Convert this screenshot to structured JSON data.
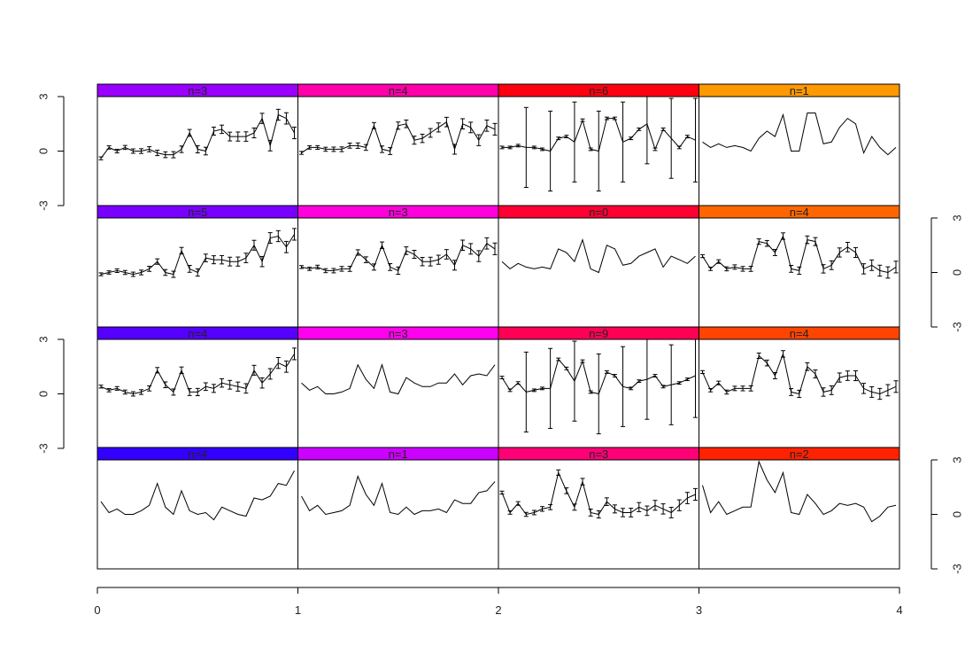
{
  "chart_data": {
    "type": "line",
    "layout": "4x4 small multiples (trellis)",
    "xlim": [
      0,
      4
    ],
    "ylim": [
      -3,
      3
    ],
    "x_ticks": [
      "0",
      "1",
      "2",
      "3",
      "4"
    ],
    "y_ticks": [
      "-3",
      "0",
      "3"
    ],
    "points_per_panel": 25,
    "panels": [
      {
        "row": 1,
        "col": 1,
        "label": "n=3",
        "strip_color": "#9900ff",
        "error_bars": "small",
        "y": [
          -0.4,
          0.2,
          0.0,
          0.2,
          0.0,
          0.0,
          0.1,
          -0.1,
          -0.2,
          -0.2,
          0.1,
          1.0,
          0.1,
          0.0,
          1.1,
          1.2,
          0.8,
          0.8,
          0.8,
          1.0,
          1.8,
          0.3,
          2.0,
          1.8,
          1.0
        ]
      },
      {
        "row": 1,
        "col": 2,
        "label": "n=4",
        "strip_color": "#ff00aa",
        "error_bars": "small",
        "y": [
          -0.1,
          0.2,
          0.2,
          0.1,
          0.1,
          0.1,
          0.3,
          0.3,
          0.2,
          1.4,
          0.1,
          0.0,
          1.4,
          1.5,
          0.6,
          0.7,
          1.0,
          1.3,
          1.6,
          0.1,
          1.5,
          1.3,
          0.6,
          1.4,
          1.2
        ]
      },
      {
        "row": 1,
        "col": 3,
        "label": "n=6",
        "strip_color": "#ff0011",
        "error_bars": "large",
        "y": [
          0.2,
          0.2,
          0.3,
          0.2,
          0.2,
          0.1,
          0.0,
          0.7,
          0.8,
          0.5,
          1.7,
          0.1,
          0.0,
          1.8,
          1.8,
          0.5,
          0.7,
          1.2,
          1.5,
          0.1,
          1.2,
          0.7,
          0.2,
          0.8,
          0.6
        ]
      },
      {
        "row": 1,
        "col": 4,
        "label": "n=1",
        "strip_color": "#ff9900",
        "error_bars": "none",
        "y": [
          0.5,
          0.2,
          0.4,
          0.2,
          0.3,
          0.2,
          0.0,
          0.7,
          1.1,
          0.8,
          2.0,
          0.0,
          0.0,
          2.1,
          2.1,
          0.4,
          0.5,
          1.3,
          1.8,
          1.5,
          -0.1,
          0.8,
          0.2,
          -0.2,
          0.2
        ]
      },
      {
        "row": 2,
        "col": 1,
        "label": "n=5",
        "strip_color": "#7700ff",
        "error_bars": "small",
        "y": [
          -0.1,
          0.0,
          0.1,
          0.0,
          -0.1,
          0.0,
          0.2,
          0.6,
          0.0,
          -0.1,
          1.2,
          0.2,
          0.0,
          0.8,
          0.7,
          0.7,
          0.6,
          0.6,
          0.8,
          1.5,
          0.6,
          1.9,
          2.0,
          1.4,
          2.1
        ]
      },
      {
        "row": 2,
        "col": 2,
        "label": "n=3",
        "strip_color": "#ff00dd",
        "error_bars": "small",
        "y": [
          0.3,
          0.2,
          0.3,
          0.1,
          0.1,
          0.2,
          0.2,
          1.1,
          0.7,
          0.3,
          1.5,
          0.3,
          0.1,
          1.2,
          1.0,
          0.6,
          0.6,
          0.7,
          1.0,
          0.4,
          1.5,
          1.3,
          0.9,
          1.6,
          1.3
        ]
      },
      {
        "row": 2,
        "col": 3,
        "label": "n=0",
        "strip_color": "#ff0033",
        "error_bars": "none",
        "y": [
          0.6,
          0.2,
          0.5,
          0.3,
          0.2,
          0.3,
          0.2,
          1.3,
          1.1,
          0.6,
          1.8,
          0.2,
          0.0,
          1.5,
          1.3,
          0.4,
          0.5,
          0.9,
          1.1,
          1.3,
          0.3,
          0.9,
          0.7,
          0.5,
          0.9
        ]
      },
      {
        "row": 2,
        "col": 4,
        "label": "n=4",
        "strip_color": "#ff6600",
        "error_bars": "small",
        "y": [
          0.9,
          0.2,
          0.6,
          0.2,
          0.3,
          0.2,
          0.2,
          1.7,
          1.6,
          1.1,
          2.0,
          0.2,
          0.1,
          1.8,
          1.7,
          0.2,
          0.4,
          1.1,
          1.4,
          1.1,
          0.2,
          0.4,
          0.1,
          0.0,
          0.3
        ]
      },
      {
        "row": 3,
        "col": 1,
        "label": "n=4",
        "strip_color": "#5500ff",
        "error_bars": "small",
        "y": [
          0.4,
          0.2,
          0.3,
          0.1,
          0.0,
          0.1,
          0.3,
          1.3,
          0.5,
          0.1,
          1.3,
          0.1,
          0.1,
          0.4,
          0.3,
          0.6,
          0.5,
          0.4,
          0.3,
          1.3,
          0.6,
          1.1,
          1.7,
          1.5,
          2.2
        ]
      },
      {
        "row": 3,
        "col": 2,
        "label": "n=3",
        "strip_color": "#ff00ee",
        "error_bars": "none",
        "y": [
          0.6,
          0.2,
          0.4,
          0.0,
          0.0,
          0.1,
          0.3,
          1.6,
          0.8,
          0.3,
          1.6,
          0.1,
          0.0,
          0.9,
          0.6,
          0.4,
          0.4,
          0.6,
          0.6,
          1.1,
          0.5,
          1.0,
          1.1,
          1.0,
          1.6
        ]
      },
      {
        "row": 3,
        "col": 3,
        "label": "n=9",
        "strip_color": "#ff0055",
        "error_bars": "large",
        "y": [
          0.9,
          0.2,
          0.6,
          0.1,
          0.2,
          0.3,
          0.3,
          1.9,
          1.4,
          0.7,
          1.8,
          0.1,
          0.0,
          1.2,
          1.0,
          0.4,
          0.3,
          0.7,
          0.8,
          1.0,
          0.4,
          0.5,
          0.6,
          0.8,
          1.0
        ]
      },
      {
        "row": 3,
        "col": 4,
        "label": "n=4",
        "strip_color": "#ff4400",
        "error_bars": "small",
        "y": [
          1.2,
          0.2,
          0.6,
          0.1,
          0.3,
          0.3,
          0.3,
          2.1,
          1.7,
          1.0,
          2.2,
          0.1,
          0.0,
          1.5,
          1.1,
          0.1,
          0.2,
          0.9,
          1.0,
          1.0,
          0.3,
          0.1,
          0.0,
          0.2,
          0.4
        ]
      },
      {
        "row": 4,
        "col": 1,
        "label": "n=4",
        "strip_color": "#3300ff",
        "error_bars": "none",
        "y": [
          0.7,
          0.1,
          0.3,
          0.0,
          0.0,
          0.2,
          0.5,
          1.7,
          0.4,
          0.0,
          1.3,
          0.2,
          0.0,
          0.1,
          -0.3,
          0.4,
          0.2,
          0.0,
          -0.1,
          0.9,
          0.8,
          1.0,
          1.7,
          1.6,
          2.4
        ]
      },
      {
        "row": 4,
        "col": 2,
        "label": "n=1",
        "strip_color": "#cc00ff",
        "error_bars": "none",
        "y": [
          1.0,
          0.2,
          0.5,
          0.0,
          0.1,
          0.2,
          0.5,
          2.1,
          1.1,
          0.5,
          1.7,
          0.1,
          0.0,
          0.4,
          0.0,
          0.2,
          0.2,
          0.3,
          0.1,
          0.8,
          0.6,
          0.6,
          1.2,
          1.3,
          1.8
        ]
      },
      {
        "row": 4,
        "col": 3,
        "label": "n=3",
        "strip_color": "#ff0077",
        "error_bars": "small",
        "y": [
          1.2,
          0.1,
          0.6,
          0.0,
          0.1,
          0.3,
          0.4,
          2.3,
          1.3,
          0.4,
          1.8,
          0.1,
          0.0,
          0.7,
          0.3,
          0.1,
          0.1,
          0.4,
          0.2,
          0.5,
          0.3,
          0.1,
          0.5,
          0.9,
          1.1
        ]
      },
      {
        "row": 4,
        "col": 4,
        "label": "n=2",
        "strip_color": "#ff2200",
        "error_bars": "none",
        "y": [
          1.6,
          0.1,
          0.7,
          0.0,
          0.2,
          0.4,
          0.4,
          2.9,
          1.9,
          1.2,
          2.3,
          0.1,
          0.0,
          1.1,
          0.6,
          0.0,
          0.2,
          0.6,
          0.5,
          0.6,
          0.4,
          -0.4,
          -0.1,
          0.4,
          0.5
        ]
      }
    ]
  }
}
